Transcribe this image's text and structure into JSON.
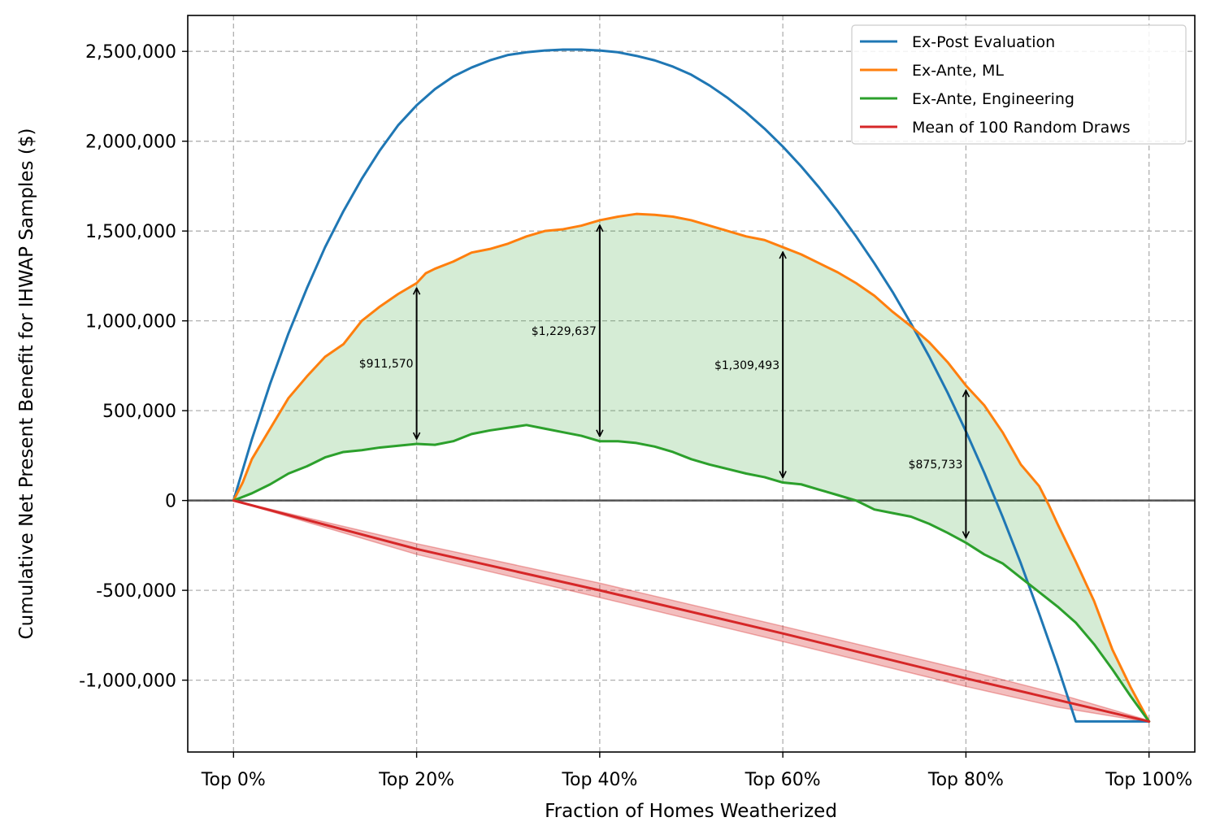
{
  "chart_data": {
    "type": "line",
    "xlabel": "Fraction of Homes Weatherized",
    "ylabel": "Cumulative Net Present Benefit for IHWAP Samples ($)",
    "xlim": [
      -5,
      105
    ],
    "ylim": [
      -1400000,
      2700000
    ],
    "x_ticks": [
      0,
      20,
      40,
      60,
      80,
      100
    ],
    "x_tick_labels": [
      "Top 0%",
      "Top 20%",
      "Top 40%",
      "Top 60%",
      "Top 80%",
      "Top 100%"
    ],
    "y_ticks": [
      -1000000,
      -500000,
      0,
      500000,
      1000000,
      1500000,
      2000000,
      2500000
    ],
    "y_tick_labels": [
      "-1,000,000",
      "-500,000",
      "0",
      "500,000",
      "1,000,000",
      "1,500,000",
      "2,000,000",
      "2,500,000"
    ],
    "grid": true,
    "legend_position": "top-right",
    "series": [
      {
        "name": "Ex-Post Evaluation",
        "color": "#1f77b4",
        "x": [
          0,
          2,
          4,
          6,
          8,
          10,
          12,
          14,
          16,
          18,
          20,
          22,
          24,
          26,
          28,
          30,
          32,
          34,
          36,
          38,
          40,
          42,
          44,
          46,
          48,
          50,
          52,
          54,
          56,
          58,
          60,
          62,
          64,
          66,
          68,
          70,
          72,
          74,
          76,
          78,
          80,
          82,
          84,
          86,
          88,
          90,
          92,
          94,
          96,
          98,
          100
        ],
        "values": [
          0,
          340000,
          650000,
          930000,
          1180000,
          1410000,
          1610000,
          1790000,
          1950000,
          2090000,
          2200000,
          2290000,
          2360000,
          2410000,
          2450000,
          2480000,
          2495000,
          2505000,
          2510000,
          2510000,
          2505000,
          2495000,
          2475000,
          2450000,
          2415000,
          2370000,
          2310000,
          2240000,
          2160000,
          2070000,
          1970000,
          1860000,
          1740000,
          1610000,
          1470000,
          1320000,
          1160000,
          985000,
          800000,
          600000,
          385000,
          155000,
          -90000,
          -350000,
          -630000,
          -920000,
          -1230000,
          -1230000,
          -1230000,
          -1230000,
          -1230000
        ]
      },
      {
        "name": "Ex-Ante, ML",
        "color": "#ff7f0e",
        "x": [
          0,
          1,
          2,
          4,
          6,
          8,
          10,
          12,
          14,
          16,
          18,
          20,
          21,
          22,
          24,
          26,
          28,
          30,
          32,
          34,
          36,
          38,
          40,
          42,
          44,
          46,
          48,
          50,
          52,
          54,
          56,
          58,
          60,
          62,
          64,
          66,
          68,
          70,
          72,
          74,
          76,
          78,
          80,
          82,
          84,
          86,
          88,
          89,
          90,
          92,
          94,
          96,
          98,
          100
        ],
        "values": [
          0,
          100000,
          230000,
          400000,
          570000,
          690000,
          800000,
          870000,
          1000000,
          1080000,
          1150000,
          1210000,
          1265000,
          1290000,
          1330000,
          1380000,
          1400000,
          1430000,
          1470000,
          1500000,
          1510000,
          1530000,
          1560000,
          1580000,
          1595000,
          1590000,
          1580000,
          1560000,
          1530000,
          1500000,
          1470000,
          1450000,
          1410000,
          1370000,
          1320000,
          1270000,
          1210000,
          1140000,
          1050000,
          970000,
          880000,
          770000,
          640000,
          530000,
          380000,
          200000,
          80000,
          -20000,
          -130000,
          -340000,
          -560000,
          -830000,
          -1040000,
          -1230000
        ]
      },
      {
        "name": "Ex-Ante, Engineering",
        "color": "#2ca02c",
        "x": [
          0,
          2,
          4,
          6,
          8,
          10,
          12,
          14,
          16,
          18,
          20,
          22,
          24,
          26,
          28,
          30,
          32,
          34,
          36,
          38,
          40,
          42,
          44,
          46,
          48,
          50,
          52,
          54,
          56,
          58,
          60,
          62,
          64,
          66,
          68,
          70,
          72,
          74,
          76,
          78,
          80,
          82,
          84,
          86,
          88,
          90,
          92,
          94,
          96,
          98,
          100
        ],
        "values": [
          0,
          40000,
          90000,
          150000,
          190000,
          240000,
          270000,
          280000,
          295000,
          305000,
          315000,
          310000,
          330000,
          370000,
          390000,
          405000,
          420000,
          400000,
          380000,
          360000,
          330000,
          330000,
          320000,
          300000,
          270000,
          230000,
          200000,
          175000,
          150000,
          130000,
          100000,
          90000,
          60000,
          30000,
          0,
          -50000,
          -70000,
          -90000,
          -130000,
          -180000,
          -235000,
          -300000,
          -350000,
          -430000,
          -510000,
          -590000,
          -680000,
          -800000,
          -940000,
          -1090000,
          -1230000
        ]
      },
      {
        "name": "Mean of 100 Random Draws",
        "color": "#d62728",
        "x": [
          0,
          20,
          40,
          60,
          80,
          90,
          100
        ],
        "values": [
          0,
          -270000,
          -500000,
          -740000,
          -990000,
          -1110000,
          -1230000
        ],
        "band_lower": [
          0,
          -300000,
          -540000,
          -785000,
          -1035000,
          -1150000,
          -1235000
        ],
        "band_upper": [
          0,
          -240000,
          -460000,
          -700000,
          -945000,
          -1075000,
          -1225000
        ]
      }
    ],
    "fill_between": {
      "between": [
        "Ex-Ante, ML",
        "Ex-Ante, Engineering"
      ],
      "color": "#2ca02c",
      "opacity": 0.2
    },
    "annotations": [
      {
        "x": 20,
        "y_top": 1210000,
        "y_bottom": 315000,
        "label": "$911,570"
      },
      {
        "x": 40,
        "y_top": 1560000,
        "y_bottom": 330000,
        "label": "$1,229,637"
      },
      {
        "x": 60,
        "y_top": 1410000,
        "y_bottom": 100000,
        "label": "$1,309,493"
      },
      {
        "x": 80,
        "y_top": 640000,
        "y_bottom": -235000,
        "label": "$875,733"
      }
    ]
  }
}
